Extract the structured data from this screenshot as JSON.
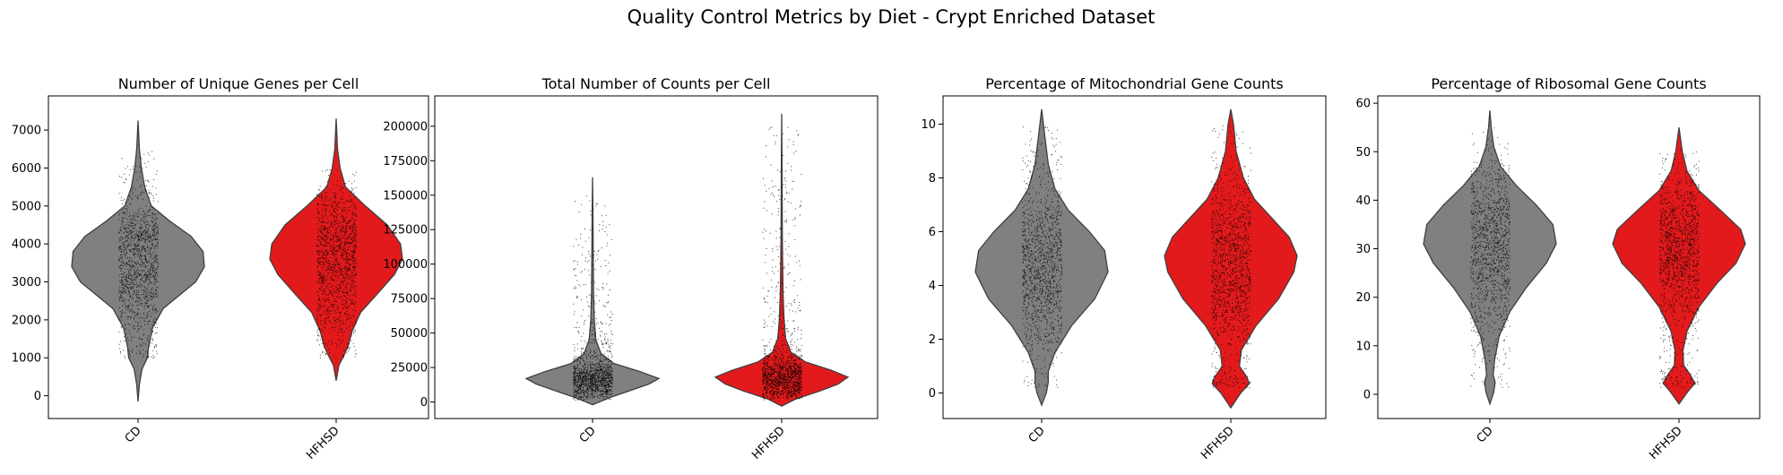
{
  "figure": {
    "title": "Quality Control Metrics by Diet - Crypt Enriched Dataset"
  },
  "colors": {
    "CD": "#808080",
    "HFHSD": "#e31a1c",
    "points": "#000000"
  },
  "chart_data": [
    {
      "type": "violin",
      "title": "Number of Unique Genes per Cell",
      "categories": [
        "CD",
        "HFHSD"
      ],
      "ylim": [
        -600,
        7900
      ],
      "yticks": [
        0,
        1000,
        2000,
        3000,
        4000,
        5000,
        6000,
        7000
      ],
      "series": [
        {
          "category": "CD",
          "min": -150,
          "max": 7250,
          "median": 3450,
          "jitter_range": [
            1000,
            6600
          ],
          "density": [
            [
              -150,
              0
            ],
            [
              300,
              0.02
            ],
            [
              700,
              0.06
            ],
            [
              1000,
              0.14
            ],
            [
              1300,
              0.16
            ],
            [
              1800,
              0.22
            ],
            [
              2300,
              0.38
            ],
            [
              2700,
              0.66
            ],
            [
              3000,
              0.87
            ],
            [
              3400,
              1.0
            ],
            [
              3800,
              0.98
            ],
            [
              4200,
              0.8
            ],
            [
              4600,
              0.48
            ],
            [
              5000,
              0.2
            ],
            [
              5500,
              0.1
            ],
            [
              6000,
              0.05
            ],
            [
              6500,
              0.02
            ],
            [
              7250,
              0
            ]
          ]
        },
        {
          "category": "HFHSD",
          "min": 400,
          "max": 7300,
          "median": 3600,
          "jitter_range": [
            1000,
            6000
          ],
          "density": [
            [
              400,
              0
            ],
            [
              800,
              0.04
            ],
            [
              1000,
              0.1
            ],
            [
              1300,
              0.18
            ],
            [
              1700,
              0.24
            ],
            [
              2200,
              0.37
            ],
            [
              2700,
              0.63
            ],
            [
              3200,
              0.88
            ],
            [
              3600,
              1.0
            ],
            [
              4000,
              0.97
            ],
            [
              4500,
              0.77
            ],
            [
              5000,
              0.44
            ],
            [
              5500,
              0.14
            ],
            [
              6000,
              0.06
            ],
            [
              6500,
              0.02
            ],
            [
              7300,
              0
            ]
          ]
        }
      ]
    },
    {
      "type": "violin",
      "title": "Total Number of Counts per Cell",
      "categories": [
        "CD",
        "HFHSD"
      ],
      "ylim": [
        -12000,
        222000
      ],
      "yticks": [
        0,
        25000,
        50000,
        75000,
        100000,
        125000,
        150000,
        175000,
        200000
      ],
      "series": [
        {
          "category": "CD",
          "min": -2000,
          "max": 163000,
          "median": 16000,
          "jitter_range": [
            1500,
            150000
          ],
          "density": [
            [
              -2000,
              0
            ],
            [
              3000,
              0.25
            ],
            [
              8000,
              0.55
            ],
            [
              13000,
              0.85
            ],
            [
              17000,
              1.0
            ],
            [
              22000,
              0.72
            ],
            [
              28000,
              0.32
            ],
            [
              35000,
              0.13
            ],
            [
              45000,
              0.05
            ],
            [
              60000,
              0.025
            ],
            [
              80000,
              0.015
            ],
            [
              110000,
              0.01
            ],
            [
              140000,
              0.006
            ],
            [
              163000,
              0
            ]
          ]
        },
        {
          "category": "HFHSD",
          "min": -3000,
          "max": 209000,
          "median": 17000,
          "jitter_range": [
            1500,
            200000
          ],
          "density": [
            [
              -3000,
              0
            ],
            [
              2000,
              0.2
            ],
            [
              8000,
              0.58
            ],
            [
              13000,
              0.85
            ],
            [
              18000,
              1.0
            ],
            [
              23000,
              0.75
            ],
            [
              29000,
              0.36
            ],
            [
              36000,
              0.14
            ],
            [
              46000,
              0.06
            ],
            [
              60000,
              0.035
            ],
            [
              80000,
              0.02
            ],
            [
              120000,
              0.01
            ],
            [
              170000,
              0.006
            ],
            [
              209000,
              0
            ]
          ]
        }
      ]
    },
    {
      "type": "violin",
      "title": "Percentage of Mitochondrial Gene Counts",
      "categories": [
        "CD",
        "HFHSD"
      ],
      "ylim": [
        -0.95,
        11.05
      ],
      "yticks": [
        0,
        2,
        4,
        6,
        8,
        10
      ],
      "series": [
        {
          "category": "CD",
          "min": -0.45,
          "max": 10.55,
          "median": 4.6,
          "jitter_range": [
            0.2,
            10.0
          ],
          "density": [
            [
              -0.45,
              0
            ],
            [
              0.0,
              0.07
            ],
            [
              0.4,
              0.1
            ],
            [
              0.8,
              0.1
            ],
            [
              1.5,
              0.2
            ],
            [
              2.5,
              0.45
            ],
            [
              3.5,
              0.8
            ],
            [
              4.5,
              1.0
            ],
            [
              5.3,
              0.95
            ],
            [
              6.0,
              0.72
            ],
            [
              6.8,
              0.4
            ],
            [
              7.6,
              0.2
            ],
            [
              8.5,
              0.1
            ],
            [
              9.5,
              0.05
            ],
            [
              10.55,
              0
            ]
          ]
        },
        {
          "category": "HFHSD",
          "min": -0.55,
          "max": 10.55,
          "median": 4.8,
          "jitter_range": [
            0.2,
            10.0
          ],
          "density": [
            [
              -0.55,
              0
            ],
            [
              0.0,
              0.15
            ],
            [
              0.35,
              0.28
            ],
            [
              0.6,
              0.24
            ],
            [
              1.0,
              0.13
            ],
            [
              1.6,
              0.16
            ],
            [
              2.5,
              0.38
            ],
            [
              3.5,
              0.72
            ],
            [
              4.5,
              0.95
            ],
            [
              5.1,
              1.0
            ],
            [
              5.8,
              0.88
            ],
            [
              6.5,
              0.62
            ],
            [
              7.2,
              0.36
            ],
            [
              8.0,
              0.19
            ],
            [
              9.0,
              0.08
            ],
            [
              10.0,
              0.04
            ],
            [
              10.55,
              0
            ]
          ]
        }
      ]
    },
    {
      "type": "violin",
      "title": "Percentage of Ribosomal Gene Counts",
      "categories": [
        "CD",
        "HFHSD"
      ],
      "ylim": [
        -5,
        61.5
      ],
      "yticks": [
        0,
        10,
        20,
        30,
        40,
        50,
        60
      ],
      "series": [
        {
          "category": "CD",
          "min": -2,
          "max": 58.5,
          "median": 32,
          "jitter_range": [
            1.5,
            55
          ],
          "density": [
            [
              -2,
              0
            ],
            [
              0.5,
              0.06
            ],
            [
              2.5,
              0.08
            ],
            [
              4,
              0.05
            ],
            [
              7,
              0.07
            ],
            [
              12,
              0.14
            ],
            [
              17,
              0.3
            ],
            [
              22,
              0.55
            ],
            [
              27,
              0.85
            ],
            [
              31,
              1.0
            ],
            [
              35,
              0.95
            ],
            [
              39,
              0.7
            ],
            [
              43,
              0.4
            ],
            [
              47,
              0.16
            ],
            [
              51,
              0.06
            ],
            [
              55,
              0.02
            ],
            [
              58.5,
              0
            ]
          ]
        },
        {
          "category": "HFHSD",
          "min": -2,
          "max": 55,
          "median": 30,
          "jitter_range": [
            1.5,
            51
          ],
          "density": [
            [
              -2,
              0
            ],
            [
              0.5,
              0.13
            ],
            [
              2.3,
              0.24
            ],
            [
              4,
              0.17
            ],
            [
              6,
              0.07
            ],
            [
              9,
              0.06
            ],
            [
              13,
              0.12
            ],
            [
              18,
              0.3
            ],
            [
              23,
              0.58
            ],
            [
              27,
              0.86
            ],
            [
              31,
              1.0
            ],
            [
              34,
              0.93
            ],
            [
              38,
              0.62
            ],
            [
              42,
              0.3
            ],
            [
              46,
              0.12
            ],
            [
              50,
              0.05
            ],
            [
              55,
              0
            ]
          ]
        }
      ]
    }
  ]
}
